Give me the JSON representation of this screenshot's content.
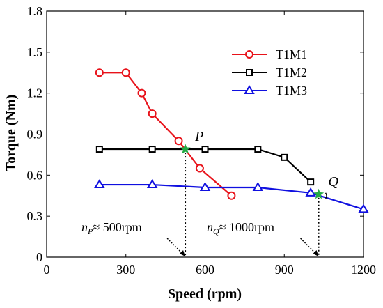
{
  "chart_data": {
    "type": "line",
    "xlabel": "Speed (rpm)",
    "ylabel": "Torque (Nm)",
    "xlim": [
      0,
      1200
    ],
    "ylim": [
      0,
      1.8
    ],
    "xticks": [
      0,
      300,
      600,
      900,
      1200
    ],
    "yticks": [
      0,
      0.3,
      0.6,
      0.9,
      1.2,
      1.5,
      1.8
    ],
    "xtick_labels": [
      "0",
      "300",
      "600",
      "900",
      "1200"
    ],
    "ytick_labels": [
      "0",
      "0.3",
      "0.6",
      "0.9",
      "1.2",
      "1.5",
      "1.8"
    ],
    "grid": false,
    "legend_position": "top-right",
    "series": [
      {
        "name": "T1M1",
        "color": "#e8121a",
        "marker": "circle",
        "x": [
          200,
          300,
          360,
          400,
          500,
          580,
          700
        ],
        "y": [
          1.35,
          1.35,
          1.2,
          1.05,
          0.85,
          0.65,
          0.45
        ]
      },
      {
        "name": "T1M2",
        "color": "#000000",
        "marker": "square",
        "x": [
          200,
          400,
          600,
          800,
          900,
          1000
        ],
        "y": [
          0.79,
          0.79,
          0.79,
          0.79,
          0.73,
          0.55
        ]
      },
      {
        "name": "T1M3",
        "color": "#1010e0",
        "marker": "triangle",
        "x": [
          200,
          400,
          600,
          800,
          1000,
          1200
        ],
        "y": [
          0.53,
          0.53,
          0.51,
          0.51,
          0.47,
          0.35
        ]
      }
    ],
    "intersections": [
      {
        "label": "P",
        "x": 525,
        "y": 0.79,
        "color": "#22aa44"
      },
      {
        "label": "Q",
        "x": 1030,
        "y": 0.46,
        "color": "#22aa44"
      }
    ],
    "annotations": [
      {
        "sub": "P",
        "text": "≈ 500rpm",
        "target_x": 525
      },
      {
        "sub": "Q",
        "text": "≈ 1000rpm",
        "target_x": 1030
      }
    ]
  }
}
